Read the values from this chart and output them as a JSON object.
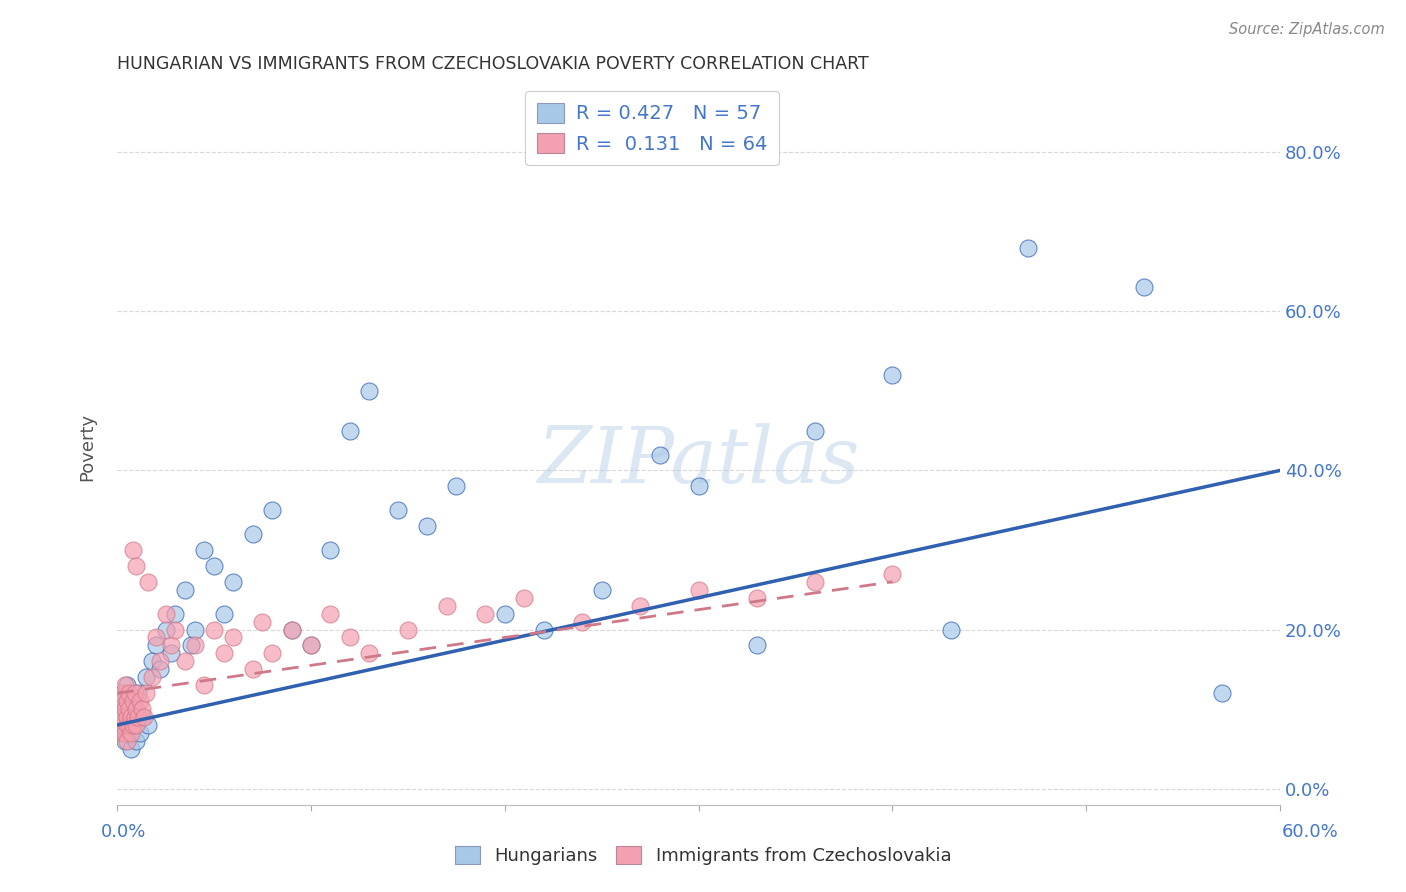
{
  "title": "HUNGARIAN VS IMMIGRANTS FROM CZECHOSLOVAKIA POVERTY CORRELATION CHART",
  "source": "Source: ZipAtlas.com",
  "ylabel": "Poverty",
  "yticks": [
    "0.0%",
    "20.0%",
    "40.0%",
    "60.0%",
    "80.0%"
  ],
  "ytick_vals": [
    0.0,
    0.2,
    0.4,
    0.6,
    0.8
  ],
  "xlim": [
    0.0,
    0.6
  ],
  "ylim": [
    -0.02,
    0.88
  ],
  "legend_r1": "R = 0.427",
  "legend_n1": "N = 57",
  "legend_r2": "R =  0.131",
  "legend_n2": "N = 64",
  "blue_color": "#a8c8e8",
  "pink_color": "#f4a0b0",
  "blue_line_color": "#3060b0",
  "pink_line_color": "#d07888",
  "legend_text_color": "#4477cc",
  "grid_color": "#d8d8d8",
  "title_color": "#333333",
  "blue_line_x": [
    0.0,
    0.6
  ],
  "blue_line_y": [
    0.08,
    0.4
  ],
  "pink_line_x": [
    0.0,
    0.4
  ],
  "pink_line_y": [
    0.12,
    0.26
  ],
  "watermark": "ZIPatlas",
  "background_color": "#ffffff",
  "blue_scatter_x": [
    0.001,
    0.002,
    0.003,
    0.003,
    0.004,
    0.004,
    0.005,
    0.005,
    0.005,
    0.006,
    0.006,
    0.007,
    0.007,
    0.008,
    0.009,
    0.01,
    0.01,
    0.011,
    0.012,
    0.013,
    0.015,
    0.016,
    0.018,
    0.02,
    0.022,
    0.025,
    0.028,
    0.03,
    0.035,
    0.038,
    0.04,
    0.045,
    0.05,
    0.055,
    0.06,
    0.07,
    0.08,
    0.09,
    0.1,
    0.11,
    0.12,
    0.13,
    0.145,
    0.16,
    0.175,
    0.2,
    0.22,
    0.25,
    0.28,
    0.3,
    0.33,
    0.36,
    0.4,
    0.43,
    0.47,
    0.53,
    0.57
  ],
  "blue_scatter_y": [
    0.08,
    0.1,
    0.07,
    0.12,
    0.09,
    0.06,
    0.11,
    0.08,
    0.13,
    0.07,
    0.1,
    0.09,
    0.05,
    0.11,
    0.08,
    0.1,
    0.06,
    0.12,
    0.07,
    0.09,
    0.14,
    0.08,
    0.16,
    0.18,
    0.15,
    0.2,
    0.17,
    0.22,
    0.25,
    0.18,
    0.2,
    0.3,
    0.28,
    0.22,
    0.26,
    0.32,
    0.35,
    0.2,
    0.18,
    0.3,
    0.45,
    0.5,
    0.35,
    0.33,
    0.38,
    0.22,
    0.2,
    0.25,
    0.42,
    0.38,
    0.18,
    0.45,
    0.52,
    0.2,
    0.68,
    0.63,
    0.12
  ],
  "pink_scatter_x": [
    0.001,
    0.001,
    0.002,
    0.002,
    0.002,
    0.003,
    0.003,
    0.003,
    0.004,
    0.004,
    0.004,
    0.005,
    0.005,
    0.005,
    0.005,
    0.006,
    0.006,
    0.006,
    0.007,
    0.007,
    0.008,
    0.008,
    0.008,
    0.009,
    0.009,
    0.01,
    0.01,
    0.01,
    0.011,
    0.012,
    0.013,
    0.014,
    0.015,
    0.016,
    0.018,
    0.02,
    0.022,
    0.025,
    0.028,
    0.03,
    0.035,
    0.04,
    0.045,
    0.05,
    0.055,
    0.06,
    0.07,
    0.075,
    0.08,
    0.09,
    0.1,
    0.11,
    0.12,
    0.13,
    0.15,
    0.17,
    0.19,
    0.21,
    0.24,
    0.27,
    0.3,
    0.33,
    0.36,
    0.4
  ],
  "pink_scatter_y": [
    0.1,
    0.08,
    0.09,
    0.12,
    0.07,
    0.08,
    0.11,
    0.09,
    0.1,
    0.07,
    0.13,
    0.08,
    0.09,
    0.11,
    0.06,
    0.1,
    0.08,
    0.12,
    0.09,
    0.07,
    0.11,
    0.08,
    0.3,
    0.09,
    0.12,
    0.1,
    0.08,
    0.28,
    0.09,
    0.11,
    0.1,
    0.09,
    0.12,
    0.26,
    0.14,
    0.19,
    0.16,
    0.22,
    0.18,
    0.2,
    0.16,
    0.18,
    0.13,
    0.2,
    0.17,
    0.19,
    0.15,
    0.21,
    0.17,
    0.2,
    0.18,
    0.22,
    0.19,
    0.17,
    0.2,
    0.23,
    0.22,
    0.24,
    0.21,
    0.23,
    0.25,
    0.24,
    0.26,
    0.27
  ]
}
